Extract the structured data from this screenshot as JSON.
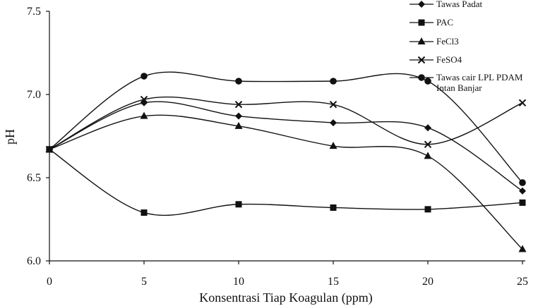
{
  "chart_data": {
    "type": "line",
    "xlabel": "Konsentrasi Tiap Koagulan (ppm)",
    "ylabel": "pH",
    "x": [
      0,
      5,
      10,
      15,
      20,
      25
    ],
    "xlim": [
      0,
      25
    ],
    "ylim": [
      6.0,
      7.5
    ],
    "x_ticks": [
      "0",
      "5",
      "10",
      "15",
      "20",
      "25"
    ],
    "y_ticks": [
      "6.0",
      "6.5",
      "7.0",
      "7.5"
    ],
    "grid": false,
    "legend_position": "top-right",
    "series": [
      {
        "name": "Tawas Padat",
        "marker": "diamond",
        "values": [
          6.67,
          6.95,
          6.87,
          6.83,
          6.8,
          6.42
        ]
      },
      {
        "name": "PAC",
        "marker": "square",
        "values": [
          6.67,
          6.29,
          6.34,
          6.32,
          6.31,
          6.35
        ]
      },
      {
        "name": "FeCl3",
        "marker": "triangle",
        "values": [
          6.67,
          6.87,
          6.81,
          6.69,
          6.63,
          6.07
        ]
      },
      {
        "name": "FeSO4",
        "marker": "x",
        "values": [
          6.67,
          6.97,
          6.94,
          6.94,
          6.7,
          6.95
        ]
      },
      {
        "name": "Tawas cair LPL PDAM Intan Banjar",
        "legend_lines": [
          "Tawas cair LPL PDAM",
          "Intan Banjar"
        ],
        "marker": "circle",
        "values": [
          6.67,
          7.11,
          7.08,
          7.08,
          7.08,
          6.47
        ]
      }
    ]
  }
}
